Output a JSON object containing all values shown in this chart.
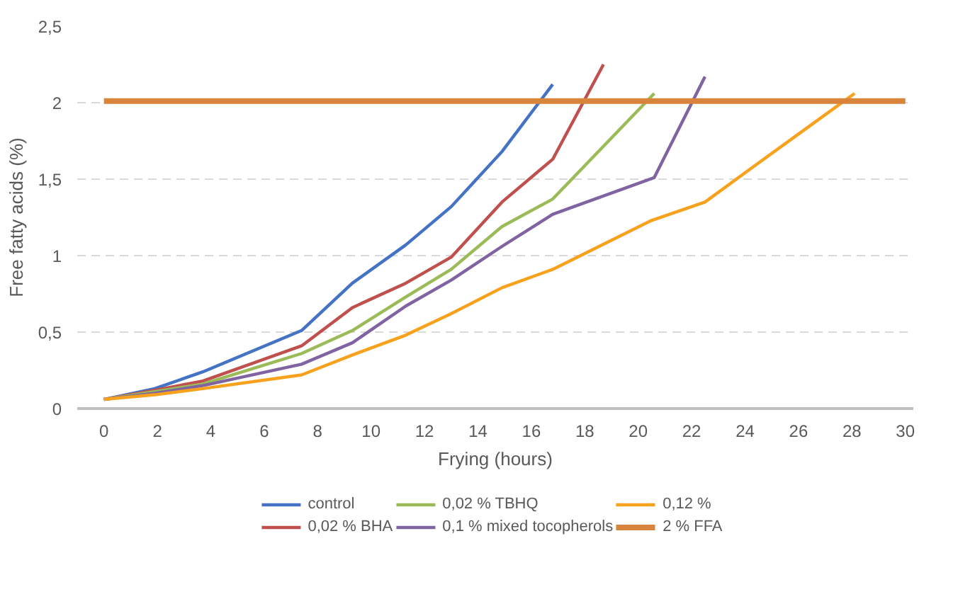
{
  "chart_data": {
    "type": "line",
    "xlabel": "Frying (hours)",
    "ylabel": "Free fatty acids (%)",
    "xlim": [
      -1,
      30.3
    ],
    "ylim": [
      0,
      2.5
    ],
    "xticks": [
      0,
      2,
      4,
      6,
      8,
      10,
      12,
      14,
      16,
      18,
      20,
      22,
      24,
      26,
      28,
      30
    ],
    "yticks": [
      0,
      {
        "value": 0.5,
        "label": "0,5"
      },
      1,
      {
        "value": 1.5,
        "label": "1,5"
      },
      2,
      {
        "value": 2.5,
        "label": "2,5"
      }
    ],
    "grid": "y",
    "legend": "bottom",
    "line_style": "solid",
    "marker": "none",
    "series": [
      {
        "name": "control",
        "color": "#4472c4",
        "x": [
          0,
          1.9,
          3.7,
          7.4,
          9.3,
          11.3,
          13.0,
          14.9,
          16.8
        ],
        "values": [
          0.06,
          0.13,
          0.24,
          0.51,
          0.82,
          1.07,
          1.32,
          1.68,
          2.12
        ]
      },
      {
        "name": "0,02 % BHA",
        "color": "#c0504d",
        "x": [
          0,
          1.9,
          3.7,
          7.4,
          9.3,
          11.3,
          13.0,
          14.9,
          16.8,
          18.7
        ],
        "values": [
          0.06,
          0.12,
          0.18,
          0.41,
          0.66,
          0.82,
          0.99,
          1.35,
          1.63,
          2.25
        ]
      },
      {
        "name": "0,02 % TBHQ",
        "color": "#9bbb59",
        "x": [
          0,
          1.9,
          3.7,
          7.4,
          9.3,
          11.3,
          13.0,
          14.9,
          16.8,
          20.6
        ],
        "values": [
          0.06,
          0.11,
          0.16,
          0.36,
          0.51,
          0.73,
          0.91,
          1.19,
          1.37,
          2.06
        ]
      },
      {
        "name": "0,1 % mixed tocopherols",
        "color": "#8064a2",
        "x": [
          0,
          1.9,
          3.7,
          7.4,
          9.3,
          11.3,
          13.0,
          14.9,
          16.8,
          20.6,
          22.5
        ],
        "values": [
          0.06,
          0.1,
          0.15,
          0.29,
          0.43,
          0.67,
          0.84,
          1.06,
          1.27,
          1.51,
          2.17
        ]
      },
      {
        "name": "0,12 %",
        "color": "#f7a11d",
        "x": [
          0,
          1.9,
          3.7,
          7.4,
          9.3,
          11.3,
          13.0,
          14.9,
          16.8,
          20.5,
          22.5,
          24.3,
          26.2,
          28.1
        ],
        "values": [
          0.06,
          0.09,
          0.13,
          0.22,
          0.35,
          0.48,
          0.62,
          0.79,
          0.91,
          1.23,
          1.35,
          1.58,
          1.82,
          2.06
        ]
      }
    ],
    "ref_lines": [
      {
        "axis": "y",
        "value": 2.01,
        "label": "2 % FFA",
        "color": "#d9843b"
      }
    ]
  }
}
